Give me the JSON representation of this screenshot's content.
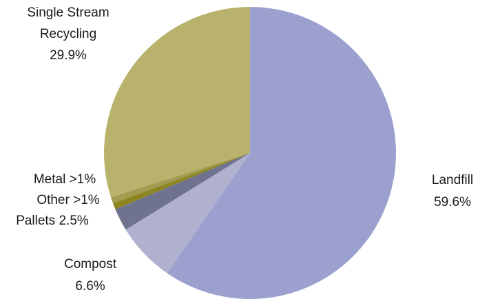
{
  "chart_data": {
    "type": "pie",
    "title": "",
    "slices": [
      {
        "name": "Landfill",
        "label_lines": [
          "Landfill",
          "59.6%"
        ],
        "value": 59.6,
        "color": "#9ba0cf"
      },
      {
        "name": "Compost",
        "label_lines": [
          "Compost",
          "6.6%"
        ],
        "value": 6.6,
        "color": "#afb1cf"
      },
      {
        "name": "Pallets",
        "label_lines": [
          "Pallets 2.5%"
        ],
        "value": 2.5,
        "color": "#6f7390"
      },
      {
        "name": "Other",
        "label_lines": [
          "Other >1%"
        ],
        "value": 0.7,
        "color": "#8c8520"
      },
      {
        "name": "Metal",
        "label_lines": [
          "Metal >1%"
        ],
        "value": 0.7,
        "color": "#a19c52"
      },
      {
        "name": "Single Stream Recycling",
        "label_lines": [
          "Single Stream",
          "Recycling",
          "29.9%"
        ],
        "value": 29.9,
        "color": "#b8b26c"
      }
    ],
    "start_angle_deg": 0,
    "direction": "clockwise",
    "legend": "none"
  }
}
